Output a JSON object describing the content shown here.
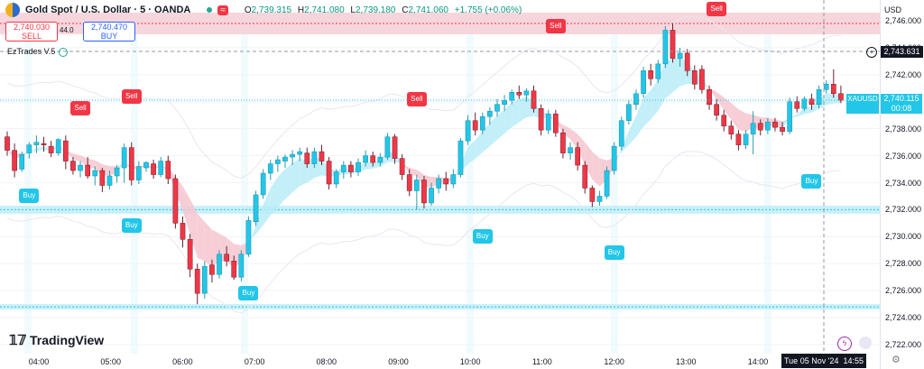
{
  "header": {
    "symbol_title": "Gold Spot / U.S. Dollar · 5 · OANDA",
    "ohlc": {
      "o_label": "O",
      "o": "2,739.315",
      "h_label": "H",
      "h": "2,741.080",
      "l_label": "L",
      "l": "2,739.180",
      "c_label": "C",
      "c": "2,741.060",
      "chg": "+1.755 (+0.06%)"
    },
    "sell_price": "2,740.030",
    "sell_label": "SELL",
    "buy_price": "2,740.470",
    "buy_label": "BUY",
    "spread": "44.0",
    "indicator_name": "EzTrades V.5"
  },
  "axis": {
    "currency": "USD",
    "y_ticks": [
      "2,746.000",
      "2,744.000",
      "2,742.000",
      "2,740.000",
      "2,738.000",
      "2,736.000",
      "2,734.000",
      "2,732.000",
      "2,730.000",
      "2,728.000",
      "2,726.000",
      "2,724.000",
      "2,722.000"
    ],
    "x_ticks": [
      "04:00",
      "05:00",
      "06:00",
      "07:00",
      "08:00",
      "09:00",
      "10:00",
      "11:00",
      "12:00",
      "13:00",
      "14:00"
    ],
    "crosshair_price": "2,743.631",
    "last_symbol": "XAUUSD",
    "last_price": "2,740.115",
    "countdown": "00:08",
    "date_label": "Tue 05 Nov '24",
    "time_label": "14:55"
  },
  "branding": {
    "logo_text": "TradingView"
  },
  "colors": {
    "up": "#22c6e8",
    "down": "#f23645",
    "cloud_up": "#b8ecf8",
    "cloud_down": "#f6c6cf",
    "sell_zone": "#f7d5dc",
    "buy_zone": "#c9f0fa"
  },
  "chart_data": {
    "type": "candlestick",
    "ylim": [
      2722,
      2747
    ],
    "x_range": [
      "03:35",
      "14:55"
    ],
    "candles": [
      [
        2737.4,
        2737.8,
        2736.0,
        2736.4
      ],
      [
        2736.4,
        2736.9,
        2734.4,
        2734.9
      ],
      [
        2735.0,
        2736.3,
        2734.8,
        2736.1
      ],
      [
        2736.2,
        2737.0,
        2735.8,
        2736.8
      ],
      [
        2736.8,
        2737.5,
        2736.2,
        2737.0
      ],
      [
        2736.9,
        2737.4,
        2736.3,
        2736.8
      ],
      [
        2736.7,
        2737.1,
        2735.9,
        2736.2
      ],
      [
        2736.2,
        2737.3,
        2736.0,
        2737.2
      ],
      [
        2737.1,
        2737.5,
        2735.0,
        2735.6
      ],
      [
        2735.6,
        2735.9,
        2734.6,
        2734.9
      ],
      [
        2734.9,
        2735.6,
        2734.4,
        2735.3
      ],
      [
        2735.3,
        2735.9,
        2734.3,
        2734.5
      ],
      [
        2734.5,
        2735.2,
        2733.8,
        2734.9
      ],
      [
        2734.9,
        2735.1,
        2733.3,
        2733.8
      ],
      [
        2733.8,
        2734.9,
        2733.5,
        2734.5
      ],
      [
        2734.5,
        2735.3,
        2734.0,
        2735.1
      ],
      [
        2735.1,
        2736.9,
        2734.0,
        2736.6
      ],
      [
        2736.6,
        2737.0,
        2733.8,
        2734.2
      ],
      [
        2734.2,
        2735.6,
        2733.9,
        2735.2
      ],
      [
        2735.1,
        2735.6,
        2734.8,
        2735.5
      ],
      [
        2735.4,
        2735.7,
        2734.3,
        2734.6
      ],
      [
        2734.6,
        2735.9,
        2734.4,
        2735.6
      ],
      [
        2735.6,
        2736.0,
        2733.9,
        2734.3
      ],
      [
        2734.3,
        2734.6,
        2730.6,
        2731.0
      ],
      [
        2731.0,
        2731.5,
        2729.2,
        2729.8
      ],
      [
        2729.8,
        2730.2,
        2727.0,
        2727.6
      ],
      [
        2727.6,
        2728.0,
        2725.0,
        2725.8
      ],
      [
        2725.8,
        2728.2,
        2725.4,
        2727.8
      ],
      [
        2727.9,
        2728.3,
        2726.6,
        2727.2
      ],
      [
        2727.2,
        2729.0,
        2726.9,
        2728.7
      ],
      [
        2728.7,
        2729.3,
        2727.8,
        2728.2
      ],
      [
        2728.2,
        2728.6,
        2726.8,
        2727.0
      ],
      [
        2727.0,
        2729.0,
        2726.7,
        2728.7
      ],
      [
        2728.7,
        2731.5,
        2728.5,
        2731.2
      ],
      [
        2731.1,
        2733.4,
        2730.8,
        2733.1
      ],
      [
        2733.1,
        2735.0,
        2732.8,
        2734.7
      ],
      [
        2734.7,
        2735.7,
        2734.2,
        2735.4
      ],
      [
        2735.4,
        2736.0,
        2734.8,
        2735.7
      ],
      [
        2735.6,
        2736.1,
        2735.1,
        2735.9
      ],
      [
        2735.9,
        2736.4,
        2735.3,
        2736.1
      ],
      [
        2736.1,
        2736.6,
        2735.6,
        2736.3
      ],
      [
        2736.2,
        2736.6,
        2735.1,
        2735.4
      ],
      [
        2735.4,
        2736.6,
        2735.1,
        2736.3
      ],
      [
        2736.3,
        2736.8,
        2735.3,
        2735.6
      ],
      [
        2735.6,
        2735.9,
        2733.5,
        2733.9
      ],
      [
        2733.9,
        2735.0,
        2733.6,
        2734.8
      ],
      [
        2734.8,
        2735.6,
        2734.3,
        2735.3
      ],
      [
        2735.3,
        2735.6,
        2734.4,
        2734.8
      ],
      [
        2734.8,
        2735.8,
        2734.5,
        2735.5
      ],
      [
        2735.5,
        2736.4,
        2735.2,
        2736.0
      ],
      [
        2736.0,
        2736.3,
        2735.2,
        2735.5
      ],
      [
        2735.5,
        2736.2,
        2735.2,
        2735.9
      ],
      [
        2735.9,
        2737.7,
        2735.7,
        2737.4
      ],
      [
        2737.4,
        2737.6,
        2735.4,
        2735.8
      ],
      [
        2735.8,
        2736.1,
        2734.2,
        2734.6
      ],
      [
        2734.6,
        2735.0,
        2733.0,
        2733.4
      ],
      [
        2733.4,
        2734.6,
        2732.0,
        2734.2
      ],
      [
        2734.2,
        2734.5,
        2732.1,
        2732.5
      ],
      [
        2732.5,
        2734.0,
        2732.3,
        2733.6
      ],
      [
        2733.6,
        2734.6,
        2733.2,
        2734.3
      ],
      [
        2734.3,
        2734.8,
        2733.4,
        2733.9
      ],
      [
        2733.9,
        2735.0,
        2733.6,
        2734.6
      ],
      [
        2734.6,
        2737.3,
        2734.4,
        2737.1
      ],
      [
        2737.1,
        2739.0,
        2736.8,
        2738.6
      ],
      [
        2738.6,
        2739.2,
        2737.5,
        2737.9
      ],
      [
        2737.9,
        2739.2,
        2737.6,
        2738.9
      ],
      [
        2738.9,
        2739.6,
        2738.3,
        2739.3
      ],
      [
        2739.3,
        2740.2,
        2738.9,
        2739.8
      ],
      [
        2739.8,
        2740.5,
        2739.3,
        2740.1
      ],
      [
        2740.1,
        2740.9,
        2739.8,
        2740.7
      ],
      [
        2740.7,
        2741.2,
        2740.2,
        2740.5
      ],
      [
        2740.5,
        2741.0,
        2740.0,
        2740.8
      ],
      [
        2740.8,
        2741.2,
        2739.2,
        2739.5
      ],
      [
        2739.5,
        2739.8,
        2737.5,
        2737.9
      ],
      [
        2737.9,
        2739.4,
        2737.6,
        2739.1
      ],
      [
        2739.1,
        2739.4,
        2737.4,
        2737.7
      ],
      [
        2737.7,
        2738.0,
        2735.8,
        2736.2
      ],
      [
        2736.2,
        2737.0,
        2735.7,
        2736.6
      ],
      [
        2736.6,
        2737.0,
        2734.9,
        2735.3
      ],
      [
        2735.3,
        2735.6,
        2733.2,
        2733.6
      ],
      [
        2733.6,
        2733.8,
        2732.2,
        2732.6
      ],
      [
        2732.6,
        2733.4,
        2732.3,
        2733.0
      ],
      [
        2733.0,
        2735.2,
        2732.8,
        2734.9
      ],
      [
        2734.9,
        2737.0,
        2734.6,
        2736.7
      ],
      [
        2736.7,
        2738.9,
        2736.4,
        2738.6
      ],
      [
        2738.6,
        2740.1,
        2738.3,
        2739.8
      ],
      [
        2739.8,
        2740.9,
        2739.4,
        2740.6
      ],
      [
        2740.6,
        2742.6,
        2740.3,
        2742.3
      ],
      [
        2742.3,
        2742.8,
        2741.2,
        2741.7
      ],
      [
        2741.7,
        2743.1,
        2741.4,
        2742.8
      ],
      [
        2742.8,
        2745.6,
        2742.5,
        2745.3
      ],
      [
        2745.3,
        2745.8,
        2742.9,
        2743.2
      ],
      [
        2743.2,
        2744.0,
        2742.6,
        2743.6
      ],
      [
        2743.6,
        2743.9,
        2741.9,
        2742.3
      ],
      [
        2742.3,
        2742.7,
        2740.9,
        2741.3
      ],
      [
        2742.4,
        2742.7,
        2740.6,
        2740.9
      ],
      [
        2740.9,
        2741.2,
        2739.4,
        2739.8
      ],
      [
        2739.8,
        2740.2,
        2738.6,
        2739.0
      ],
      [
        2739.0,
        2739.4,
        2737.8,
        2738.2
      ],
      [
        2738.2,
        2738.6,
        2737.2,
        2737.6
      ],
      [
        2737.6,
        2737.9,
        2736.4,
        2736.8
      ],
      [
        2736.8,
        2737.9,
        2736.5,
        2737.6
      ],
      [
        2737.6,
        2739.3,
        2736.1,
        2738.4
      ],
      [
        2738.4,
        2738.7,
        2737.5,
        2737.9
      ],
      [
        2737.9,
        2738.8,
        2737.6,
        2738.5
      ],
      [
        2738.5,
        2738.8,
        2737.8,
        2738.1
      ],
      [
        2738.1,
        2738.5,
        2737.5,
        2737.8
      ],
      [
        2737.8,
        2740.3,
        2737.6,
        2740.0
      ],
      [
        2740.0,
        2740.4,
        2739.2,
        2739.5
      ],
      [
        2739.5,
        2740.4,
        2739.3,
        2740.2
      ],
      [
        2740.2,
        2740.6,
        2739.4,
        2739.8
      ],
      [
        2739.8,
        2741.2,
        2739.5,
        2740.9
      ],
      [
        2740.9,
        2741.6,
        2740.6,
        2741.3
      ],
      [
        2741.3,
        2742.4,
        2740.3,
        2740.6
      ],
      [
        2740.6,
        2741.2,
        2739.9,
        2740.1
      ]
    ],
    "signals": [
      {
        "type": "Sell",
        "time_index": 10,
        "price": 2739.5
      },
      {
        "type": "Sell",
        "time_index": 17,
        "price": 2740.4
      },
      {
        "type": "Sell",
        "time_index": 56,
        "price": 2740.2
      },
      {
        "type": "Sell",
        "time_index": 75,
        "price": 2745.6
      },
      {
        "type": "Sell",
        "time_index": 97,
        "price": 2747.4
      },
      {
        "type": "Buy",
        "time_index": 3,
        "price": 2733.0
      },
      {
        "type": "Buy",
        "time_index": 17,
        "price": 2730.8
      },
      {
        "type": "Buy",
        "time_index": 33,
        "price": 2725.8
      },
      {
        "type": "Buy",
        "time_index": 65,
        "price": 2730.0
      },
      {
        "type": "Buy",
        "time_index": 83,
        "price": 2728.8
      },
      {
        "type": "Buy",
        "time_index": 110,
        "price": 2734.1
      }
    ],
    "levels": {
      "sell_zone": [
        2745.0,
        2746.6
      ],
      "buy_zone": [
        2731.7,
        2732.3
      ],
      "bottom_zone": [
        2724.6,
        2725.0
      ]
    }
  }
}
